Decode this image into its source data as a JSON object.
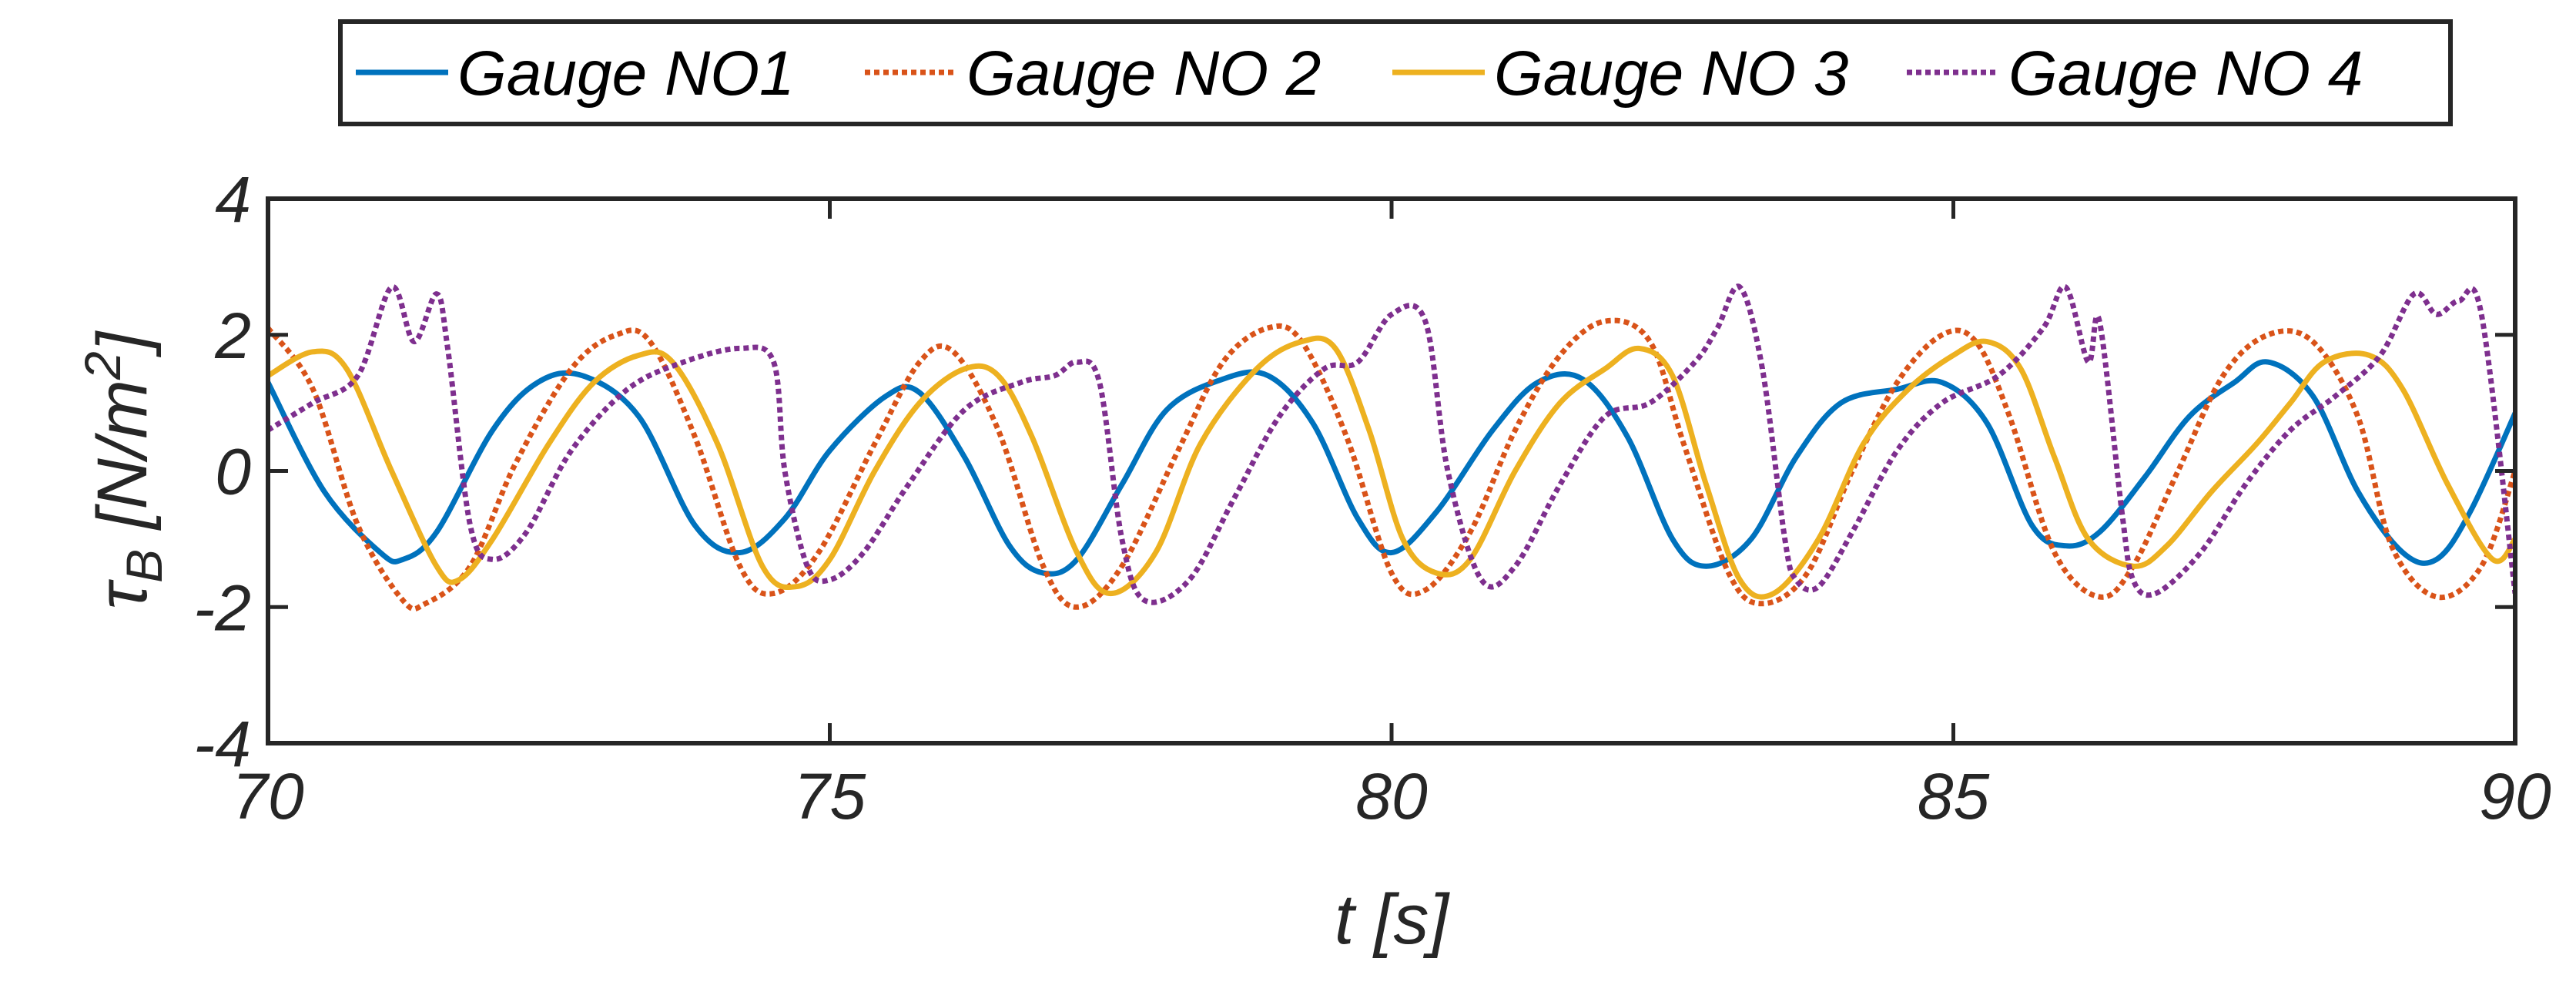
{
  "chart_data": {
    "type": "line",
    "title": "",
    "xlabel": "t [s]",
    "ylabel_main": "τ",
    "ylabel_sub": "B",
    "ylabel_unit_pre": " [N/m",
    "ylabel_unit_sup": "2",
    "ylabel_unit_post": "]",
    "xlim": [
      70,
      90
    ],
    "ylim": [
      -4,
      4
    ],
    "xticks": [
      70,
      75,
      80,
      85,
      90
    ],
    "xtick_labels": [
      "70",
      "75",
      "80",
      "85",
      "90"
    ],
    "yticks": [
      -4,
      -2,
      0,
      2,
      4
    ],
    "ytick_labels": [
      "-4",
      "-2",
      "0",
      "2",
      "4"
    ],
    "grid": false,
    "legend_position": "top-outside",
    "series": [
      {
        "name": "Gauge NO1",
        "color": "#0072BD",
        "dash": "solid",
        "x": [
          70.0,
          70.5,
          71.0,
          71.2,
          71.5,
          72.0,
          72.4,
          72.8,
          73.3,
          73.8,
          74.2,
          74.6,
          75.0,
          75.5,
          75.8,
          76.2,
          76.6,
          76.9,
          77.2,
          77.6,
          78.0,
          78.5,
          78.9,
          79.3,
          79.7,
          80.0,
          80.4,
          80.9,
          81.3,
          81.7,
          82.1,
          82.5,
          82.8,
          83.2,
          83.6,
          84.0,
          84.5,
          84.9,
          85.3,
          85.7,
          86.0,
          86.3,
          86.7,
          87.1,
          87.5,
          87.8,
          88.2,
          88.6,
          89.0,
          89.3,
          89.6,
          90.0
        ],
        "y": [
          1.3,
          -0.3,
          -1.2,
          -1.3,
          -0.9,
          0.6,
          1.3,
          1.4,
          0.8,
          -0.8,
          -1.2,
          -0.7,
          0.3,
          1.1,
          1.15,
          0.2,
          -1.1,
          -1.5,
          -1.3,
          -0.2,
          0.9,
          1.35,
          1.4,
          0.7,
          -0.7,
          -1.2,
          -0.6,
          0.6,
          1.3,
          1.35,
          0.5,
          -1.0,
          -1.4,
          -1.0,
          0.2,
          1.0,
          1.2,
          1.3,
          0.7,
          -0.8,
          -1.1,
          -0.9,
          -0.1,
          0.8,
          1.3,
          1.6,
          1.1,
          -0.3,
          -1.2,
          -1.3,
          -0.6,
          0.85
        ]
      },
      {
        "name": "Gauge NO 2",
        "color": "#D95319",
        "dash": "dot",
        "x": [
          70.0,
          70.4,
          70.8,
          71.2,
          71.4,
          71.8,
          72.2,
          72.7,
          73.1,
          73.4,
          73.8,
          74.2,
          74.5,
          74.9,
          75.4,
          75.8,
          76.1,
          76.5,
          76.9,
          77.2,
          77.6,
          78.1,
          78.5,
          78.9,
          79.2,
          79.6,
          80.0,
          80.3,
          80.7,
          81.1,
          81.5,
          81.9,
          82.3,
          82.6,
          83.0,
          83.3,
          83.7,
          84.1,
          84.5,
          84.9,
          85.2,
          85.5,
          85.9,
          86.3,
          86.6,
          87.0,
          87.4,
          87.8,
          88.2,
          88.6,
          88.9,
          89.3,
          89.7,
          90.0
        ],
        "y": [
          2.1,
          1.2,
          -0.8,
          -1.9,
          -1.95,
          -1.4,
          0.1,
          1.5,
          2.0,
          1.9,
          0.5,
          -1.4,
          -1.8,
          -1.2,
          0.4,
          1.6,
          1.75,
          0.6,
          -1.4,
          -2.0,
          -1.4,
          0.3,
          1.6,
          2.1,
          1.9,
          0.5,
          -1.5,
          -1.75,
          -0.9,
          0.6,
          1.7,
          2.2,
          1.9,
          0.4,
          -1.5,
          -1.95,
          -1.5,
          0.0,
          1.3,
          2.0,
          1.9,
          0.8,
          -1.2,
          -1.85,
          -1.4,
          0.0,
          1.4,
          2.0,
          1.9,
          0.8,
          -1.1,
          -1.85,
          -1.4,
          0.0
        ]
      },
      {
        "name": "Gauge NO 3",
        "color": "#EDB120",
        "dash": "solid",
        "x": [
          70.0,
          70.4,
          70.7,
          71.1,
          71.5,
          71.7,
          72.0,
          72.5,
          72.9,
          73.3,
          73.6,
          74.0,
          74.4,
          74.7,
          75.0,
          75.4,
          75.8,
          76.2,
          76.5,
          76.8,
          77.2,
          77.5,
          77.9,
          78.3,
          78.8,
          79.2,
          79.5,
          79.8,
          80.1,
          80.4,
          80.7,
          81.1,
          81.5,
          81.9,
          82.2,
          82.5,
          82.8,
          83.1,
          83.4,
          83.8,
          84.2,
          84.6,
          85.0,
          85.3,
          85.6,
          85.9,
          86.2,
          86.6,
          86.9,
          87.3,
          87.7,
          88.0,
          88.3,
          88.7,
          89.0,
          89.4,
          89.8,
          90.0
        ],
        "y": [
          1.4,
          1.75,
          1.5,
          0.0,
          -1.4,
          -1.6,
          -1.0,
          0.4,
          1.3,
          1.7,
          1.6,
          0.4,
          -1.4,
          -1.7,
          -1.3,
          0.0,
          1.0,
          1.5,
          1.4,
          0.5,
          -1.2,
          -1.8,
          -1.2,
          0.4,
          1.5,
          1.9,
          1.8,
          0.6,
          -1.0,
          -1.5,
          -1.3,
          0.0,
          1.0,
          1.5,
          1.8,
          1.4,
          -0.2,
          -1.6,
          -1.8,
          -1.0,
          0.4,
          1.2,
          1.7,
          1.9,
          1.5,
          0.2,
          -1.0,
          -1.4,
          -1.1,
          -0.3,
          0.4,
          1.0,
          1.6,
          1.7,
          1.2,
          -0.2,
          -1.3,
          -1.0
        ]
      },
      {
        "name": "Gauge NO 4",
        "color": "#7E2F8E",
        "dash": "dot",
        "x": [
          70.0,
          70.4,
          70.8,
          71.1,
          71.3,
          71.5,
          71.6,
          71.8,
          72.0,
          72.3,
          72.7,
          73.2,
          73.7,
          74.2,
          74.5,
          74.6,
          74.8,
          75.0,
          75.3,
          75.7,
          76.2,
          76.7,
          77.0,
          77.2,
          77.4,
          77.6,
          77.8,
          78.2,
          78.6,
          79.0,
          79.4,
          79.7,
          80.0,
          80.3,
          80.5,
          80.8,
          81.1,
          81.5,
          81.9,
          82.3,
          82.7,
          82.9,
          83.1,
          83.3,
          83.5,
          83.6,
          83.8,
          84.1,
          84.5,
          84.9,
          85.4,
          85.8,
          86.0,
          86.2,
          86.3,
          86.5,
          86.6,
          86.8,
          87.2,
          87.6,
          88.0,
          88.4,
          88.8,
          89.1,
          89.3,
          89.5,
          89.7,
          90.0
        ],
        "y": [
          0.6,
          1.0,
          1.4,
          2.7,
          1.9,
          2.6,
          1.8,
          -0.8,
          -1.3,
          -0.9,
          0.3,
          1.2,
          1.6,
          1.8,
          1.6,
          0.0,
          -1.4,
          -1.6,
          -1.2,
          -0.2,
          0.9,
          1.3,
          1.4,
          1.6,
          1.3,
          -1.0,
          -1.9,
          -1.6,
          -0.4,
          0.8,
          1.5,
          1.6,
          2.3,
          2.2,
          0.0,
          -1.6,
          -1.4,
          -0.2,
          0.8,
          1.0,
          1.6,
          2.1,
          2.7,
          1.5,
          -1.0,
          -1.6,
          -1.7,
          -0.9,
          0.3,
          1.0,
          1.4,
          2.1,
          2.7,
          1.6,
          2.2,
          -0.6,
          -1.6,
          -1.8,
          -1.2,
          -0.2,
          0.6,
          1.1,
          1.7,
          2.6,
          2.3,
          2.5,
          2.3,
          -1.8
        ]
      }
    ]
  }
}
